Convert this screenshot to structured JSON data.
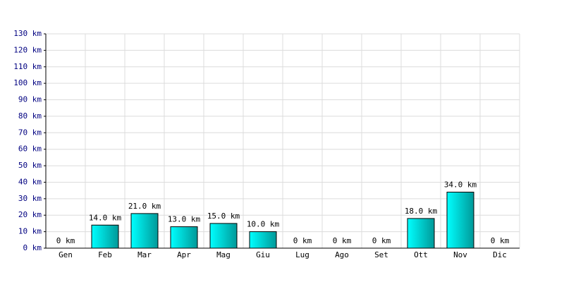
{
  "chart_data": {
    "type": "bar",
    "categories": [
      "Gen",
      "Feb",
      "Mar",
      "Apr",
      "Mag",
      "Giu",
      "Lug",
      "Ago",
      "Set",
      "Ott",
      "Nov",
      "Dic"
    ],
    "values": [
      0,
      14,
      21,
      13,
      15,
      10,
      0,
      0,
      0,
      18,
      34,
      0
    ],
    "value_labels": [
      "0 km",
      "14.0 km",
      "21.0 km",
      "13.0 km",
      "15.0 km",
      "10.0 km",
      "0 km",
      "0 km",
      "0 km",
      "18.0 km",
      "34.0 km",
      "0 km"
    ],
    "color": "#00cccc",
    "ylim": [
      0,
      130
    ],
    "yticks": [
      {
        "value": 0,
        "label": "0 km"
      },
      {
        "value": 10,
        "label": "10 km"
      },
      {
        "value": 20,
        "label": "20 km"
      },
      {
        "value": 30,
        "label": "30 km"
      },
      {
        "value": 40,
        "label": "40 km"
      },
      {
        "value": 50,
        "label": "50 km"
      },
      {
        "value": 60,
        "label": "60 km"
      },
      {
        "value": 70,
        "label": "70 km"
      },
      {
        "value": 80,
        "label": "80 km"
      },
      {
        "value": 90,
        "label": "90 km"
      },
      {
        "value": 100,
        "label": "100 km"
      },
      {
        "value": 110,
        "label": "110 km"
      },
      {
        "value": 120,
        "label": "120 km"
      },
      {
        "value": 130,
        "label": "130 km"
      }
    ],
    "grid": true
  }
}
